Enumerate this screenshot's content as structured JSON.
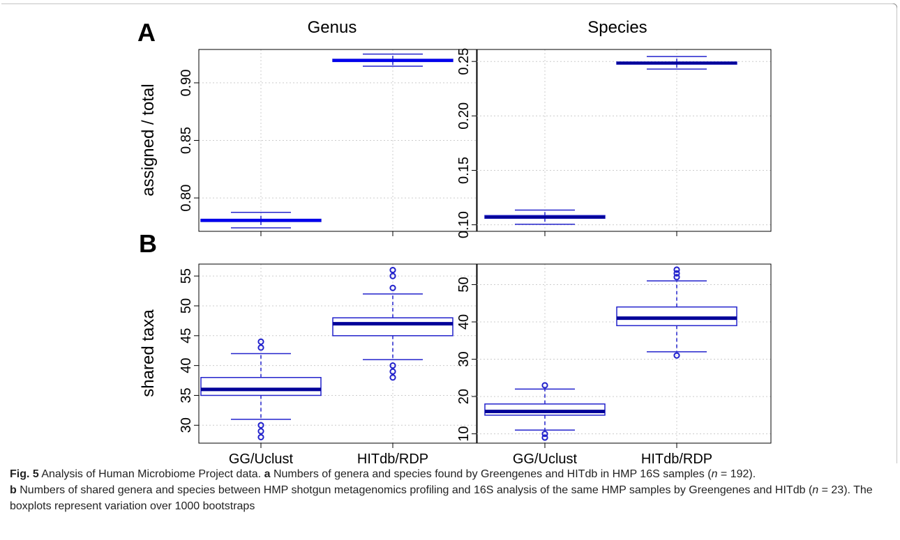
{
  "figure": {
    "panel_labels": [
      "A",
      "B"
    ],
    "column_titles": [
      "Genus",
      "Species"
    ],
    "colors": {
      "box_line": "#2222cc",
      "median_genus_a": "#0000ee",
      "median_species_a": "#000099",
      "median_b": "#000099",
      "grid": "#cccccc"
    }
  },
  "caption": {
    "fig_label": "Fig. 5",
    "title": "Analysis of Human Microbiome Project data.",
    "a_label": "a",
    "a_text": "Numbers of genera and species found by Greengenes and HITdb in HMP 16S samples (",
    "a_n": "n",
    "a_n_value": " = 192).",
    "b_label": "b",
    "b_text": "Numbers of shared genera and species between HMP shotgun metagenomics profiling and 16S analysis of the same HMP samples by Greengenes and HITdb (",
    "b_n": "n",
    "b_n_value": " = 23). The boxplots represent variation over 1000 bootstraps"
  },
  "chart_data": [
    {
      "type": "box",
      "panel": "A",
      "title": "Genus",
      "ylabel": "assigned / total",
      "categories": [
        "GG/Uclust",
        "HITdb/RDP"
      ],
      "ylim": [
        0.771,
        0.929
      ],
      "yticks": [
        "0.80",
        "0.85",
        "0.90"
      ],
      "boxes": [
        {
          "category": "GG/Uclust",
          "whisker_low": 0.774,
          "q1": 0.7795,
          "median": 0.7805,
          "q3": 0.7815,
          "whisker_high": 0.7875,
          "outliers": []
        },
        {
          "category": "HITdb/RDP",
          "whisker_low": 0.9145,
          "q1": 0.9185,
          "median": 0.9195,
          "q3": 0.9205,
          "whisker_high": 0.925,
          "outliers": []
        }
      ]
    },
    {
      "type": "box",
      "panel": "A",
      "title": "Species",
      "ylabel": "",
      "categories": [
        "GG/Uclust",
        "HITdb/RDP"
      ],
      "ylim": [
        0.094,
        0.261
      ],
      "yticks": [
        "0.10",
        "0.15",
        "0.20",
        "0.25"
      ],
      "boxes": [
        {
          "category": "GG/Uclust",
          "whisker_low": 0.1005,
          "q1": 0.106,
          "median": 0.107,
          "q3": 0.1085,
          "whisker_high": 0.1135,
          "outliers": []
        },
        {
          "category": "HITdb/RDP",
          "whisker_low": 0.243,
          "q1": 0.2475,
          "median": 0.2485,
          "q3": 0.2495,
          "whisker_high": 0.2545,
          "outliers": []
        }
      ]
    },
    {
      "type": "box",
      "panel": "B",
      "title": "",
      "ylabel": "shared taxa",
      "categories": [
        "GG/Uclust",
        "HITdb/RDP"
      ],
      "ylim": [
        27,
        57
      ],
      "yticks": [
        "30",
        "35",
        "40",
        "45",
        "50",
        "55"
      ],
      "boxes": [
        {
          "category": "GG/Uclust",
          "whisker_low": 31,
          "q1": 35,
          "median": 36,
          "q3": 38,
          "whisker_high": 42,
          "outliers": [
            28,
            29,
            30,
            43,
            44
          ]
        },
        {
          "category": "HITdb/RDP",
          "whisker_low": 41,
          "q1": 45,
          "median": 47,
          "q3": 48,
          "whisker_high": 52,
          "outliers": [
            38,
            39,
            40,
            53,
            55,
            56
          ]
        }
      ]
    },
    {
      "type": "box",
      "panel": "B",
      "title": "",
      "ylabel": "",
      "categories": [
        "GG/Uclust",
        "HITdb/RDP"
      ],
      "ylim": [
        7.5,
        55.5
      ],
      "yticks": [
        "10",
        "20",
        "30",
        "40",
        "50"
      ],
      "boxes": [
        {
          "category": "GG/Uclust",
          "whisker_low": 11,
          "q1": 15,
          "median": 16,
          "q3": 18,
          "whisker_high": 22,
          "outliers": [
            9,
            10,
            23
          ]
        },
        {
          "category": "HITdb/RDP",
          "whisker_low": 32,
          "q1": 39,
          "median": 41,
          "q3": 44,
          "whisker_high": 51,
          "outliers": [
            31,
            52,
            53,
            54
          ]
        }
      ]
    }
  ]
}
